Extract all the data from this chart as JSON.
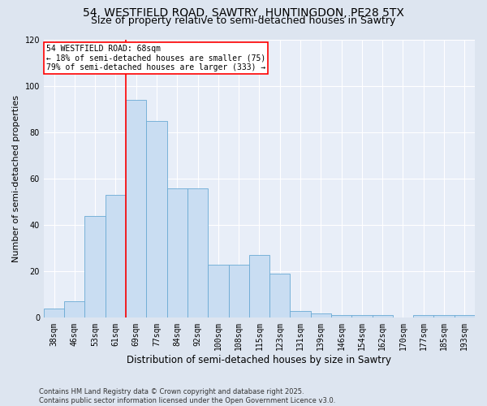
{
  "title_line1": "54, WESTFIELD ROAD, SAWTRY, HUNTINGDON, PE28 5TX",
  "title_line2": "Size of property relative to semi-detached houses in Sawtry",
  "xlabel": "Distribution of semi-detached houses by size in Sawtry",
  "ylabel": "Number of semi-detached properties",
  "categories": [
    "38sqm",
    "46sqm",
    "53sqm",
    "61sqm",
    "69sqm",
    "77sqm",
    "84sqm",
    "92sqm",
    "100sqm",
    "108sqm",
    "115sqm",
    "123sqm",
    "131sqm",
    "139sqm",
    "146sqm",
    "154sqm",
    "162sqm",
    "170sqm",
    "177sqm",
    "185sqm",
    "193sqm"
  ],
  "values": [
    4,
    7,
    44,
    53,
    94,
    85,
    56,
    56,
    23,
    23,
    27,
    19,
    3,
    2,
    1,
    1,
    1,
    0,
    1,
    1,
    1
  ],
  "bar_color": "#c9ddf2",
  "bar_edge_color": "#6aaad4",
  "highlight_line_index": 4,
  "highlight_color": "red",
  "annotation_title": "54 WESTFIELD ROAD: 68sqm",
  "annotation_line1": "← 18% of semi-detached houses are smaller (75)",
  "annotation_line2": "79% of semi-detached houses are larger (333) →",
  "annotation_box_color": "white",
  "annotation_box_edge": "red",
  "ylim": [
    0,
    120
  ],
  "yticks": [
    0,
    20,
    40,
    60,
    80,
    100,
    120
  ],
  "background_color": "#dde5f0",
  "plot_bg_color": "#e8eef8",
  "grid_color": "#ffffff",
  "footer_line1": "Contains HM Land Registry data © Crown copyright and database right 2025.",
  "footer_line2": "Contains public sector information licensed under the Open Government Licence v3.0.",
  "title_fontsize": 10,
  "subtitle_fontsize": 9,
  "xlabel_fontsize": 8.5,
  "ylabel_fontsize": 8,
  "tick_fontsize": 7,
  "footer_fontsize": 6,
  "annotation_fontsize": 7
}
